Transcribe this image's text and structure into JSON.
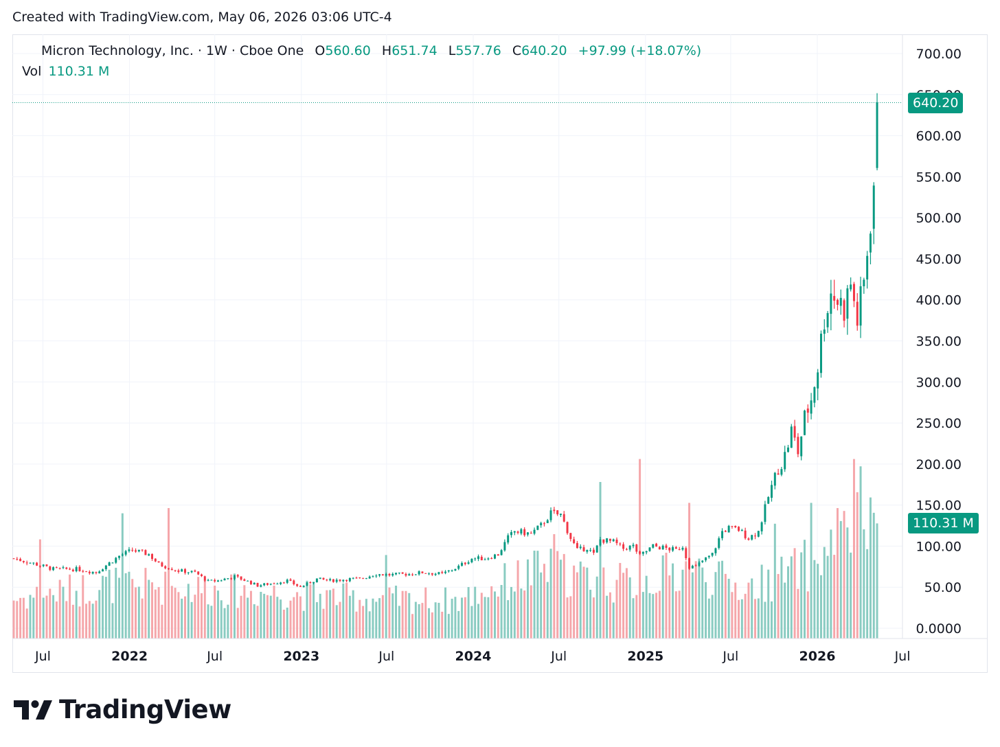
{
  "caption": "Created with TradingView.com, May 06, 2026 03:06 UTC-4",
  "legend": {
    "symbol": "Micron Technology, Inc. · 1W · Cboe One",
    "o_label": "O",
    "o_value": "560.60",
    "h_label": "H",
    "h_value": "651.74",
    "l_label": "L",
    "l_value": "557.76",
    "c_label": "C",
    "c_value": "640.20",
    "change": "+97.99 (+18.07%)",
    "vol_label": "Vol",
    "vol_value": "110.31 M"
  },
  "badges": {
    "price": "640.20",
    "volume": "110.31 M"
  },
  "brand": {
    "name": "TradingView"
  },
  "colors": {
    "up": "#089981",
    "down": "#f23645",
    "up_volume": "#89cbc1",
    "down_volume": "#f5a6aa",
    "grid": "#f0f3fa"
  },
  "chart_data": {
    "type": "candlestick",
    "interval": "1W",
    "ylim": [
      0,
      700
    ],
    "y_ticks": [
      "0.0000",
      "50.00",
      "100.00",
      "150.00",
      "200.00",
      "250.00",
      "300.00",
      "350.00",
      "400.00",
      "450.00",
      "500.00",
      "550.00",
      "600.00",
      "650.00",
      "700.00"
    ],
    "x_ticks": [
      {
        "label": "Jul",
        "date": "2021-07-01",
        "bold": false
      },
      {
        "label": "2022",
        "date": "2022-01-01",
        "bold": true
      },
      {
        "label": "Jul",
        "date": "2022-07-01",
        "bold": false
      },
      {
        "label": "2023",
        "date": "2023-01-01",
        "bold": true
      },
      {
        "label": "Jul",
        "date": "2023-07-01",
        "bold": false
      },
      {
        "label": "2024",
        "date": "2024-01-01",
        "bold": true
      },
      {
        "label": "Jul",
        "date": "2024-07-01",
        "bold": false
      },
      {
        "label": "2025",
        "date": "2025-01-01",
        "bold": true
      },
      {
        "label": "Jul",
        "date": "2025-07-01",
        "bold": false
      },
      {
        "label": "2026",
        "date": "2026-01-01",
        "bold": true
      },
      {
        "label": "Jul",
        "date": "2026-07-01",
        "bold": false
      }
    ],
    "last_close": 640.2,
    "last_volume_m": 110.31,
    "close_anchors": [
      [
        "2021-04-30",
        85
      ],
      [
        "2021-06-04",
        80
      ],
      [
        "2021-07-23",
        72
      ],
      [
        "2021-09-10",
        72
      ],
      [
        "2021-10-22",
        68
      ],
      [
        "2021-12-10",
        88
      ],
      [
        "2022-01-07",
        95
      ],
      [
        "2022-02-11",
        90
      ],
      [
        "2022-03-04",
        78
      ],
      [
        "2022-04-15",
        70
      ],
      [
        "2022-05-20",
        68
      ],
      [
        "2022-06-17",
        57
      ],
      [
        "2022-07-08",
        58
      ],
      [
        "2022-08-12",
        63
      ],
      [
        "2022-09-09",
        57
      ],
      [
        "2022-09-30",
        52
      ],
      [
        "2022-11-04",
        55
      ],
      [
        "2022-12-02",
        58
      ],
      [
        "2022-12-30",
        50
      ],
      [
        "2023-02-03",
        60
      ],
      [
        "2023-03-03",
        58
      ],
      [
        "2023-04-14",
        60
      ],
      [
        "2023-05-05",
        60
      ],
      [
        "2023-06-09",
        66
      ],
      [
        "2023-07-07",
        65
      ],
      [
        "2023-08-18",
        66
      ],
      [
        "2023-09-15",
        68
      ],
      [
        "2023-10-27",
        66
      ],
      [
        "2023-12-01",
        75
      ],
      [
        "2023-12-29",
        85
      ],
      [
        "2024-01-26",
        85
      ],
      [
        "2024-02-23",
        90
      ],
      [
        "2024-03-15",
        110
      ],
      [
        "2024-03-29",
        118
      ],
      [
        "2024-05-03",
        115
      ],
      [
        "2024-05-24",
        125
      ],
      [
        "2024-06-14",
        140
      ],
      [
        "2024-07-05",
        138
      ],
      [
        "2024-07-26",
        110
      ],
      [
        "2024-08-09",
        95
      ],
      [
        "2024-08-30",
        98
      ],
      [
        "2024-09-13",
        90
      ],
      [
        "2024-09-27",
        108
      ],
      [
        "2024-10-25",
        105
      ],
      [
        "2024-11-15",
        97
      ],
      [
        "2024-12-06",
        100
      ],
      [
        "2024-12-20",
        88
      ],
      [
        "2025-01-17",
        100
      ],
      [
        "2025-02-07",
        98
      ],
      [
        "2025-03-07",
        95
      ],
      [
        "2025-03-21",
        100
      ],
      [
        "2025-04-04",
        75
      ],
      [
        "2025-04-18",
        75
      ],
      [
        "2025-05-02",
        82
      ],
      [
        "2025-05-23",
        90
      ],
      [
        "2025-06-13",
        118
      ],
      [
        "2025-06-27",
        122
      ],
      [
        "2025-07-18",
        120
      ],
      [
        "2025-08-08",
        110
      ],
      [
        "2025-08-29",
        118
      ],
      [
        "2025-09-19",
        160
      ],
      [
        "2025-10-03",
        185
      ],
      [
        "2025-10-24",
        210
      ],
      [
        "2025-11-07",
        240
      ],
      [
        "2025-11-21",
        215
      ],
      [
        "2025-12-05",
        255
      ],
      [
        "2025-12-19",
        280
      ],
      [
        "2026-01-02",
        320
      ],
      [
        "2026-01-16",
        380
      ],
      [
        "2026-01-30",
        410
      ],
      [
        "2026-02-13",
        400
      ],
      [
        "2026-02-27",
        390
      ],
      [
        "2026-03-13",
        420
      ],
      [
        "2026-03-27",
        375
      ],
      [
        "2026-04-10",
        420
      ],
      [
        "2026-04-17",
        460
      ],
      [
        "2026-04-24",
        500
      ],
      [
        "2026-05-01",
        542.21
      ]
    ],
    "volume_anchors_m": [
      [
        "2021-04-30",
        40
      ],
      [
        "2021-12-01",
        55
      ],
      [
        "2022-06-01",
        50
      ],
      [
        "2022-12-01",
        45
      ],
      [
        "2023-06-01",
        40
      ],
      [
        "2023-12-01",
        38
      ],
      [
        "2024-03-01",
        55
      ],
      [
        "2024-06-01",
        70
      ],
      [
        "2024-09-01",
        60
      ],
      [
        "2024-12-01",
        55
      ],
      [
        "2025-04-01",
        70
      ],
      [
        "2025-08-01",
        50
      ],
      [
        "2025-11-01",
        65
      ],
      [
        "2026-01-01",
        80
      ],
      [
        "2026-04-01",
        110
      ],
      [
        "2026-05-01",
        105
      ]
    ],
    "volume_spikes_m": [
      [
        "2021-06-25",
        95
      ],
      [
        "2021-12-17",
        120
      ],
      [
        "2022-03-25",
        125
      ],
      [
        "2023-06-30",
        80
      ],
      [
        "2024-06-21",
        100
      ],
      [
        "2024-09-27",
        150
      ],
      [
        "2024-12-20",
        172
      ],
      [
        "2025-04-04",
        130
      ],
      [
        "2025-10-03",
        110
      ],
      [
        "2025-12-19",
        130
      ],
      [
        "2026-02-13",
        125
      ],
      [
        "2026-03-20",
        172
      ],
      [
        "2026-04-03",
        165
      ]
    ]
  }
}
